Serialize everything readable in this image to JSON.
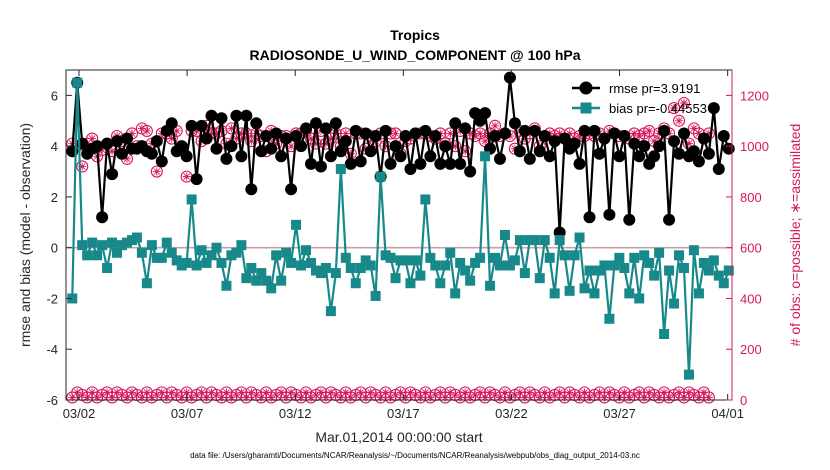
{
  "chart_data": {
    "type": "line",
    "title": "Tropics",
    "subtitle": "RADIOSONDE_U_WIND_COMPONENT @ 100 hPa",
    "xlabel": "Mar.01,2014 00:00:00 start",
    "ylabel": "rmse and bias (model - observation)",
    "y2label": "# of obs: o=possible; ∗=assimilated",
    "footnote": "data file: /Users/gharamti/Documents/NCAR/Reanalysis/~/Documents/NCAR/Reanalysis/webpub/obs_diag_output_2014-03.nc",
    "xlim": [
      1.4,
      32.2
    ],
    "ylim": [
      -6,
      7
    ],
    "y2lim": [
      0,
      1300
    ],
    "x_ticks": [
      2,
      7,
      12,
      17,
      22,
      27,
      32
    ],
    "x_tick_labels": [
      "03/02",
      "03/07",
      "03/12",
      "03/17",
      "03/22",
      "03/27",
      "04/01"
    ],
    "y_ticks": [
      -6,
      -4,
      -2,
      0,
      2,
      4,
      6
    ],
    "y_tick_labels": [
      "-6",
      "-4",
      "-2",
      "0",
      "2",
      "4",
      "6"
    ],
    "y2_ticks": [
      0,
      200,
      400,
      600,
      800,
      1000,
      1200
    ],
    "y2_tick_labels": [
      "0",
      "200",
      "400",
      "600",
      "800",
      "1000",
      "1200"
    ],
    "series": [
      {
        "name": "rmse",
        "legend": "rmse pr=3.9191",
        "color": "#000000",
        "axis": "left",
        "values": [
          4.3,
          3.8,
          6.5,
          4.1,
          3.7,
          3.9,
          4.0,
          1.2,
          4.1,
          2.9,
          4.2,
          3.7,
          4.3,
          3.9,
          3.9,
          4.0,
          3.8,
          3.7,
          4.2,
          3.4,
          4.6,
          4.9,
          3.8,
          4.0,
          3.6,
          4.8,
          2.7,
          4.8,
          4.3,
          5.2,
          3.9,
          5.1,
          3.5,
          4.0,
          5.2,
          3.6,
          5.2,
          2.3,
          4.9,
          3.8,
          4.4,
          3.9,
          4.5,
          3.6,
          4.3,
          2.3,
          4.4,
          4.0,
          4.7,
          3.3,
          4.9,
          3.2,
          4.7,
          3.6,
          4.9,
          3.8,
          4.2,
          3.3,
          4.6,
          3.4,
          4.5,
          3.8,
          4.4,
          2.8,
          4.6,
          3.3,
          4.0,
          3.6,
          4.4,
          3.1,
          4.5,
          3.3,
          4.6,
          3.6,
          4.4,
          3.3,
          4.0,
          3.3,
          4.9,
          3.3,
          4.7,
          3.0,
          5.3,
          5.0,
          5.3,
          3.9,
          4.4,
          3.5,
          4.5,
          6.7,
          4.9,
          3.8,
          4.6,
          3.5,
          4.6,
          3.8,
          4.4,
          3.6,
          4.2,
          0.6,
          4.3,
          3.9,
          4.1,
          3.3,
          4.6,
          1.2,
          4.6,
          3.7,
          4.3,
          1.3,
          4.5,
          3.6,
          4.4,
          1.1,
          4.1,
          3.6,
          4.0,
          3.3,
          3.6,
          4.0,
          4.6,
          1.1,
          4.2,
          3.7,
          4.5,
          3.6,
          3.8,
          3.4,
          4.3,
          3.7,
          5.5,
          3.1,
          4.4,
          3.9
        ],
        "points_shown": 130
      },
      {
        "name": "bias",
        "legend": "bias pr=-0.44553",
        "color": "#18898a",
        "axis": "left",
        "values": [
          0.4,
          -2.0,
          6.5,
          0.1,
          -0.3,
          0.2,
          -0.3,
          0.1,
          -0.8,
          0.2,
          -0.2,
          0.1,
          0.2,
          0.3,
          0.4,
          -0.2,
          -1.4,
          0.1,
          -0.4,
          -0.4,
          0.2,
          -0.2,
          -0.5,
          -0.7,
          -0.6,
          1.9,
          -0.7,
          -0.1,
          -0.6,
          -0.3,
          0.0,
          -0.6,
          -1.5,
          -0.3,
          -0.2,
          0.1,
          -1.2,
          -0.8,
          -1.3,
          -1.0,
          -1.3,
          -1.6,
          -0.3,
          -1.3,
          -0.2,
          -0.6,
          0.9,
          -0.7,
          -0.1,
          -0.6,
          -0.9,
          -1.0,
          -0.8,
          -2.5,
          -1.0,
          3.1,
          -0.4,
          -0.8,
          -1.4,
          -0.8,
          -0.5,
          -0.7,
          -1.9,
          2.8,
          -0.3,
          -0.4,
          -1.2,
          -0.5,
          -0.5,
          -1.4,
          -0.5,
          -1.1,
          1.9,
          -0.4,
          -0.7,
          -1.4,
          -0.7,
          -0.2,
          -1.8,
          -0.6,
          -0.9,
          -1.3,
          -0.6,
          -0.4,
          3.6,
          -1.5,
          -0.4,
          -0.7,
          0.5,
          -0.7,
          -0.5,
          0.3,
          -1.0,
          0.3,
          0.3,
          -1.2,
          0.3,
          -0.4,
          -1.8,
          0.3,
          -0.3,
          -1.7,
          -0.3,
          0.4,
          -1.6,
          -0.9,
          -1.8,
          -0.9,
          -0.7,
          -2.8,
          -0.7,
          -0.4,
          -0.8,
          -1.8,
          -0.4,
          -2.0,
          -0.3,
          -0.6,
          -1.1,
          -0.2,
          -3.4,
          -0.9,
          -2.2,
          -0.3,
          -0.8,
          -5.0,
          -0.1,
          -1.8,
          -0.6,
          -0.9,
          -0.5,
          -1.1,
          -1.4,
          -0.9
        ],
        "points_shown": 130
      }
    ],
    "obs_possible": {
      "marker": "o",
      "color": "#d6185f",
      "axis": "right",
      "values": [
        905,
        1010,
        1000,
        920,
        1010,
        1030,
        960,
        985,
        1010,
        980,
        1040,
        1020,
        950,
        1050,
        1000,
        1070,
        1060,
        1010,
        900,
        1050,
        1050,
        1030,
        1060,
        990,
        880,
        1060,
        1060,
        1020,
        1080,
        1050,
        1050,
        1060,
        1010,
        1070,
        1030,
        1050,
        1050,
        1020,
        1050,
        1040,
        980,
        1060,
        1010,
        1040,
        1040,
        1000,
        1050,
        1050,
        1060,
        1030,
        1010,
        1060,
        1010,
        1030,
        1050,
        1000,
        1050,
        970,
        1050,
        1050,
        990,
        1040,
        1020,
        1050,
        1000,
        1050,
        1050,
        970,
        1020,
        1030,
        1050,
        1050,
        1050,
        1040,
        1030,
        1050,
        1010,
        1050,
        1000,
        1060,
        980,
        1050,
        1040,
        1050,
        1020,
        1050,
        1080,
        1040,
        1050,
        1040,
        990,
        1060,
        1030,
        1050,
        1070,
        1000,
        1040,
        1050,
        1040,
        1050,
        1030,
        1050,
        1030,
        1040,
        1040,
        1050,
        1040,
        1050,
        1030,
        1060,
        1050,
        1040,
        1040,
        1030,
        1050,
        1040,
        1050,
        1060,
        1020,
        1050,
        1070,
        1050,
        1150,
        1100,
        1170,
        1010,
        1070,
        1050,
        1030,
        1050
      ]
    },
    "obs_low": {
      "marker": "o",
      "color": "#d6185f",
      "axis": "right",
      "values": [
        30,
        10,
        30,
        20,
        10,
        30,
        10,
        20,
        30,
        10,
        30,
        20,
        10,
        30,
        20,
        10,
        30,
        10,
        20,
        30,
        10,
        30,
        20,
        10,
        30,
        10,
        20,
        30,
        10,
        30,
        20,
        10,
        30,
        10,
        20,
        30,
        10,
        30,
        20,
        10,
        30,
        10,
        20,
        30,
        10,
        30,
        20,
        10,
        30,
        10,
        20,
        30,
        10,
        30,
        20,
        10,
        30,
        10,
        20,
        30,
        10,
        30,
        20,
        10,
        30,
        10,
        20,
        30,
        10,
        30,
        20,
        10,
        30,
        10,
        20,
        30,
        10,
        30,
        20,
        10,
        30,
        10,
        20,
        30,
        10,
        30,
        20,
        10,
        30,
        10,
        20,
        30,
        10,
        30,
        20,
        10,
        30,
        10,
        20,
        30,
        10,
        30,
        20,
        10,
        30,
        10,
        20,
        30,
        10,
        30,
        20,
        10,
        30,
        10,
        20,
        30,
        10,
        30,
        20,
        10,
        30,
        10,
        20,
        30,
        10,
        30,
        20,
        10,
        30,
        10
      ]
    },
    "zero_line": 0,
    "grid": false,
    "legend_position": "top-right"
  }
}
